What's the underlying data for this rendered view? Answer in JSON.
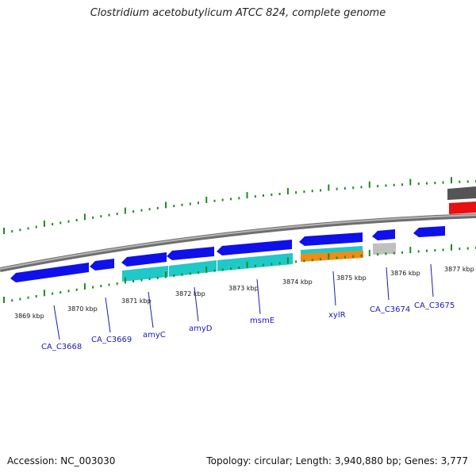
{
  "title": "Clostridium acetobutylicum ATCC 824, complete genome",
  "footer": {
    "accession": "Accession: NC_003030",
    "summary": "Topology: circular; Length: 3,940,880 bp; Genes: 3,777"
  },
  "colors": {
    "backbone": "#808080",
    "tick": "#1e8a1e",
    "gene_forward": "#1010e8",
    "cds": "#20c8c8",
    "orange_feature": "#f08c14",
    "grey_feature": "#c0c0c0",
    "red_feature": "#e81010",
    "dark_feature": "#5a5a5a",
    "label": "#1a1ab5"
  },
  "scale_ticks": [
    "3869 kbp",
    "3870 kbp",
    "3871 kbp",
    "3872 kbp",
    "3873 kbp",
    "3874 kbp",
    "3875 kbp",
    "3876 kbp",
    "3877 kbp"
  ],
  "gene_labels": [
    "CA_C3668",
    "CA_C3669",
    "amyC",
    "amyD",
    "msmE",
    "xylR",
    "CA_C3674",
    "CA_C3675"
  ]
}
